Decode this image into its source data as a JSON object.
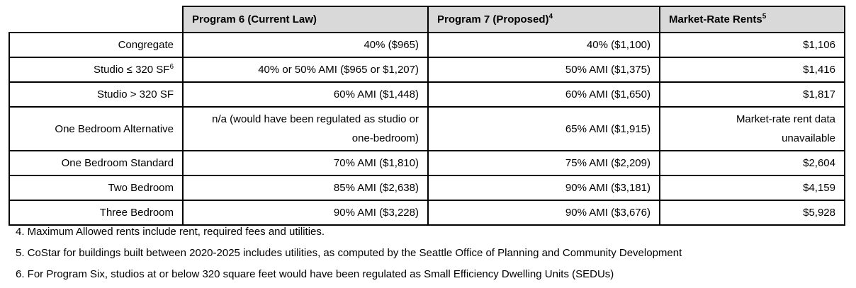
{
  "table": {
    "columns": [
      {
        "label": ""
      },
      {
        "label": "Program 6 (Current Law)",
        "superscript": ""
      },
      {
        "label": "Program 7 (Proposed)",
        "superscript": "4"
      },
      {
        "label": "Market-Rate Rents",
        "superscript": "5"
      }
    ],
    "rows": [
      {
        "label": "Congregate",
        "label_sup": "",
        "program6": "40% ($965)",
        "program7": "40% ($1,100)",
        "market": "$1,106"
      },
      {
        "label": "Studio ≤ 320 SF",
        "label_sup": "6",
        "program6": "40% or 50% AMI ($965 or $1,207)",
        "program7": "50% AMI ($1,375)",
        "market": "$1,416"
      },
      {
        "label": "Studio > 320 SF",
        "label_sup": "",
        "program6": "60% AMI ($1,448)",
        "program7": "60% AMI ($1,650)",
        "market": "$1,817"
      },
      {
        "label": "One Bedroom Alternative",
        "label_sup": "",
        "program6": "n/a (would have been regulated as studio or one-bedroom)",
        "program7": "65% AMI ($1,915)",
        "market": "Market-rate rent data unavailable"
      },
      {
        "label": "One Bedroom Standard",
        "label_sup": "",
        "program6": "70% AMI ($1,810)",
        "program7": "75% AMI ($2,209)",
        "market": "$2,604"
      },
      {
        "label": "Two Bedroom",
        "label_sup": "",
        "program6": "85% AMI ($2,638)",
        "program7": "90% AMI ($3,181)",
        "market": "$4,159"
      },
      {
        "label": "Three Bedroom",
        "label_sup": "",
        "program6": "90% AMI ($3,228)",
        "program7": "90% AMI ($3,676)",
        "market": "$5,928"
      }
    ]
  },
  "footnotes": [
    "4. Maximum Allowed rents include rent, required fees and utilities.",
    "5. CoStar for buildings built between 2020-2025 includes utilities, as computed by the Seattle Office of Planning and Community Development",
    "6. For Program Six, studios at or below 320 square feet would have been regulated as Small Efficiency Dwelling Units (SEDUs)"
  ],
  "colors": {
    "header_bg": "#d9d9d9",
    "border": "#000000",
    "text": "#000000",
    "background": "#ffffff"
  }
}
